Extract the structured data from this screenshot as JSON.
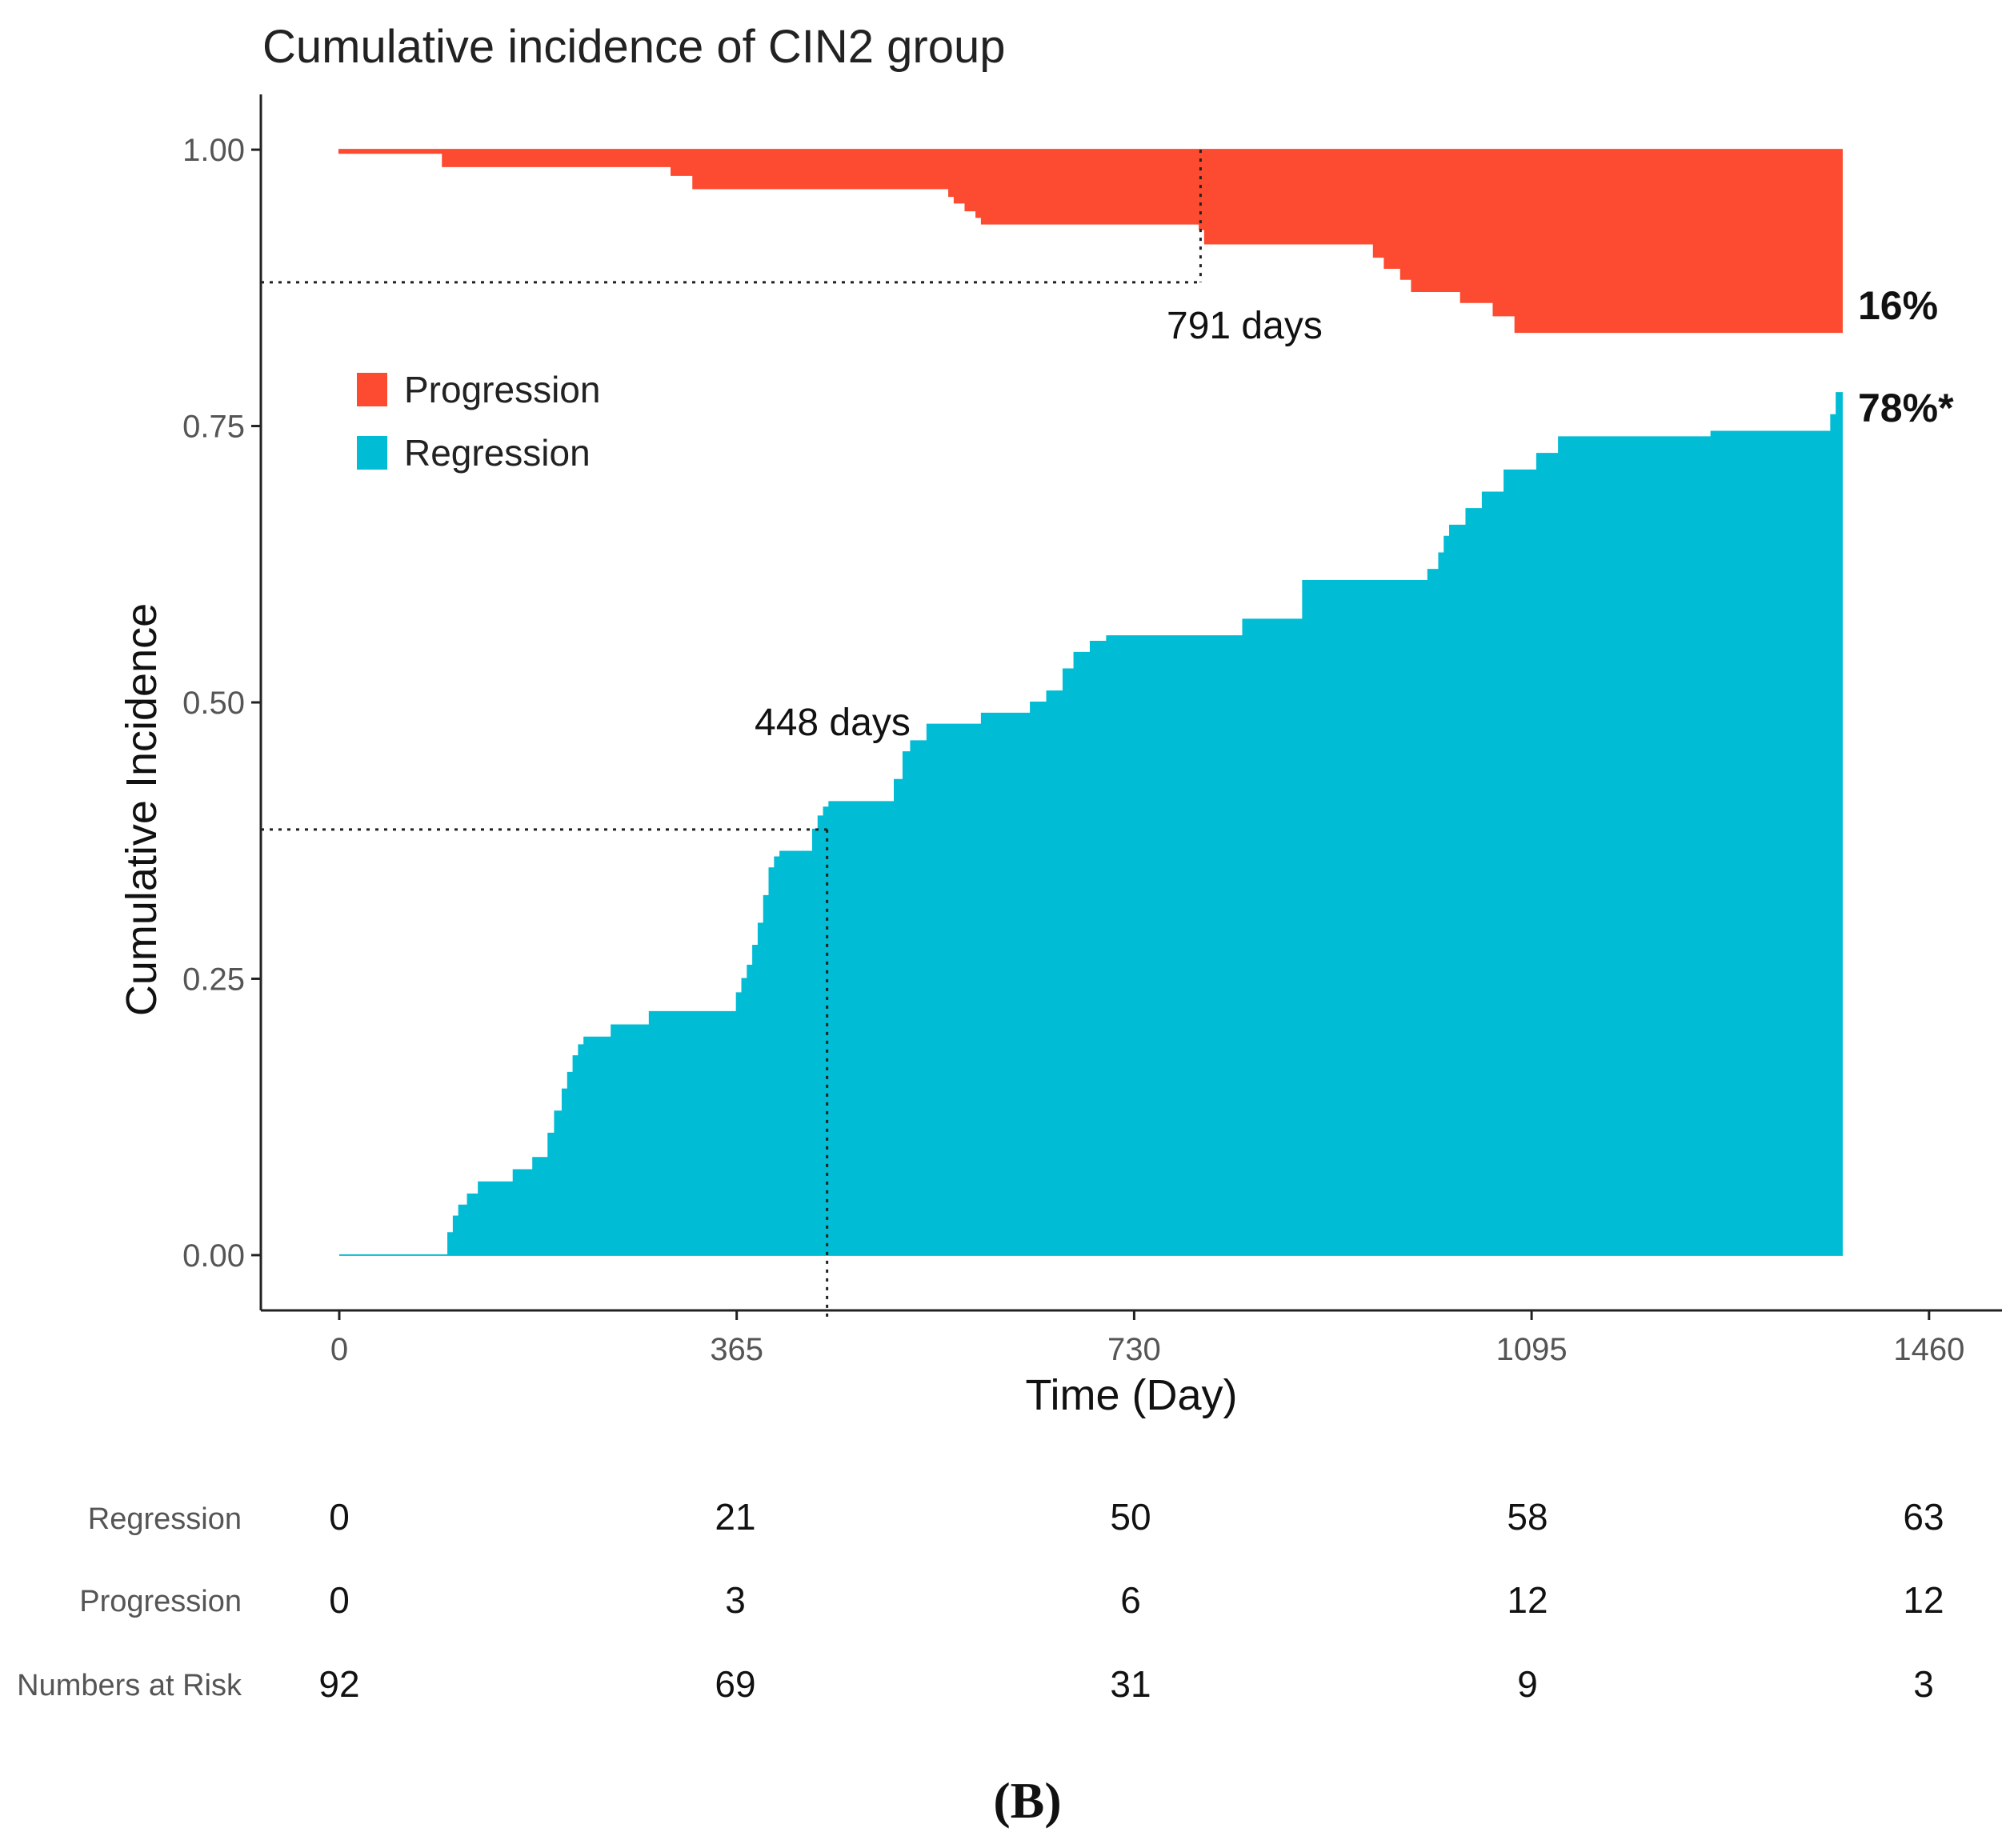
{
  "chart_data": {
    "type": "area",
    "title": "Cumulative incidence of CIN2 group",
    "xlabel": "Time (Day)",
    "ylabel": "Cumulative Incidence",
    "xlim": [
      -72,
      1527
    ],
    "ylim": [
      -0.05,
      1.05
    ],
    "x_ticks": [
      "0",
      "365",
      "730",
      "1095",
      "1460"
    ],
    "y_ticks": [
      "0.00",
      "0.25",
      "0.50",
      "0.75",
      "1.00"
    ],
    "grid": false,
    "legend_position": "top-left",
    "colors": {
      "progression": "#fc4b30",
      "regression": "#00bcd4"
    },
    "legend": [
      "Progression",
      "Regression"
    ],
    "series": [
      {
        "name": "Progression",
        "baseline": 1.0,
        "x": [
          0,
          95,
          305,
          325,
          560,
          565,
          575,
          585,
          590,
          790,
          795,
          950,
          960,
          975,
          985,
          1000,
          1030,
          1060,
          1080,
          1085,
          1380
        ],
        "y": [
          0.997,
          0.985,
          0.977,
          0.965,
          0.958,
          0.952,
          0.945,
          0.939,
          0.933,
          0.928,
          0.915,
          0.903,
          0.893,
          0.883,
          0.872,
          0.872,
          0.862,
          0.85,
          0.835,
          0.835,
          0.835
        ]
      },
      {
        "name": "Regression",
        "baseline": 0.0,
        "x": [
          0,
          100,
          105,
          110,
          118,
          128,
          160,
          178,
          192,
          198,
          205,
          210,
          215,
          220,
          225,
          230,
          250,
          270,
          285,
          365,
          370,
          375,
          380,
          385,
          390,
          395,
          400,
          405,
          410,
          425,
          435,
          440,
          445,
          450,
          510,
          518,
          525,
          540,
          590,
          635,
          650,
          665,
          675,
          690,
          705,
          730,
          830,
          885,
          1000,
          1010,
          1015,
          1020,
          1035,
          1050,
          1070,
          1100,
          1120,
          1260,
          1370,
          1375,
          1380
        ],
        "y": [
          0.0,
          0.02,
          0.035,
          0.045,
          0.055,
          0.066,
          0.077,
          0.088,
          0.11,
          0.13,
          0.15,
          0.165,
          0.18,
          0.19,
          0.197,
          0.197,
          0.208,
          0.208,
          0.22,
          0.237,
          0.25,
          0.262,
          0.28,
          0.3,
          0.325,
          0.35,
          0.36,
          0.365,
          0.365,
          0.365,
          0.385,
          0.397,
          0.405,
          0.41,
          0.43,
          0.455,
          0.465,
          0.48,
          0.49,
          0.5,
          0.51,
          0.53,
          0.545,
          0.555,
          0.56,
          0.56,
          0.575,
          0.61,
          0.62,
          0.635,
          0.65,
          0.66,
          0.675,
          0.69,
          0.71,
          0.725,
          0.74,
          0.745,
          0.76,
          0.78,
          0.78
        ]
      }
    ],
    "reference_lines": [
      {
        "name": "progression-median",
        "x": 791,
        "y": 0.88,
        "label": "791 days"
      },
      {
        "name": "regression-median",
        "x": 448,
        "y": 0.385,
        "label": "448 days"
      }
    ],
    "end_labels": [
      {
        "series": "Progression",
        "text": "16%",
        "y": 0.86
      },
      {
        "series": "Regression",
        "text": "78%*",
        "y": 0.77
      }
    ],
    "risk_table": {
      "time_points": [
        0,
        365,
        730,
        1095,
        1460
      ],
      "rows": [
        {
          "label": "Regression",
          "values": [
            "0",
            "21",
            "50",
            "58",
            "63"
          ]
        },
        {
          "label": "Progression",
          "values": [
            "0",
            "3",
            "6",
            "12",
            "12"
          ]
        },
        {
          "label": "Numbers at Risk",
          "values": [
            "92",
            "69",
            "31",
            "9",
            "3"
          ]
        }
      ]
    }
  },
  "panel_label": "(B)"
}
